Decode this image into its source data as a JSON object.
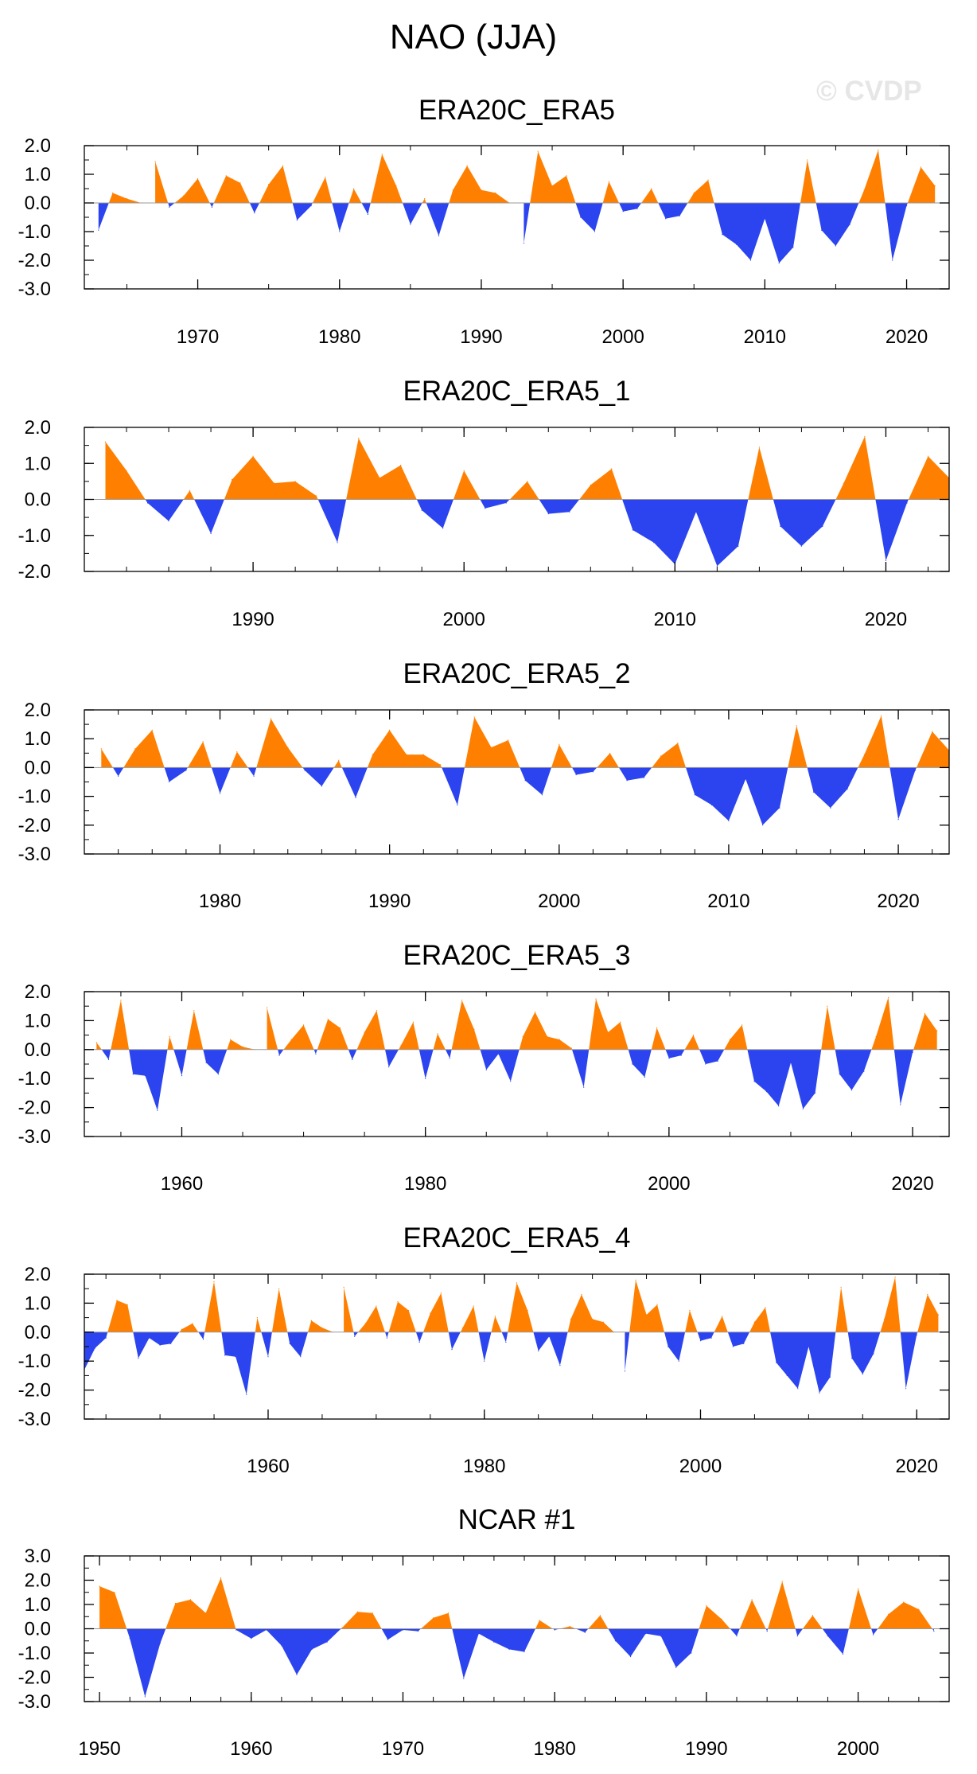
{
  "figure": {
    "title": "NAO (JJA)",
    "watermark": "© CVDP"
  },
  "colors": {
    "positive": "#ff8000",
    "negative": "#2b44ef",
    "axis": "#000000",
    "zero_line": "#999999"
  },
  "chart_data": [
    {
      "type": "area",
      "title": "ERA20C_ERA5",
      "xlim": [
        1962,
        2023
      ],
      "ylim": [
        -3,
        2
      ],
      "y_ticks": [
        2,
        1,
        0,
        -1,
        -2,
        -3
      ],
      "y_tick_labels": [
        "2.0",
        "1.0",
        "0.0",
        "-1.0",
        "-2.0",
        "-3.0"
      ],
      "x_ticks": [
        1970,
        1980,
        1990,
        2000,
        2010,
        2020
      ],
      "x_start": 1963,
      "values": [
        -0.95,
        0.35,
        0.15,
        0.0,
        1.45,
        -0.15,
        0.25,
        0.85,
        -0.15,
        0.95,
        0.7,
        -0.35,
        0.65,
        1.3,
        -0.6,
        -0.1,
        0.9,
        -1.0,
        0.5,
        -0.4,
        1.7,
        0.6,
        -0.75,
        0.15,
        -1.15,
        0.45,
        1.3,
        0.45,
        0.35,
        0.0,
        -1.4,
        1.8,
        0.6,
        0.95,
        -0.5,
        -1.0,
        0.75,
        -0.3,
        -0.2,
        0.5,
        -0.55,
        -0.45,
        0.35,
        0.8,
        -1.1,
        -1.45,
        -2.0,
        -0.55,
        -2.1,
        -1.55,
        1.5,
        -0.95,
        -1.5,
        -0.75,
        0.45,
        1.85,
        -2.0,
        -0.1,
        1.25,
        0.6
      ]
    },
    {
      "type": "area",
      "title": "ERA20C_ERA5_1",
      "xlim": [
        1982,
        2023
      ],
      "ylim": [
        -2,
        2
      ],
      "y_ticks": [
        2,
        1,
        0,
        -1,
        -2
      ],
      "y_tick_labels": [
        "2.0",
        "1.0",
        "0.0",
        "-1.0",
        "-2.0"
      ],
      "x_ticks": [
        1990,
        2000,
        2010,
        2020
      ],
      "x_start": 1983,
      "values": [
        1.6,
        0.8,
        -0.1,
        -0.6,
        0.25,
        -0.95,
        0.55,
        1.2,
        0.45,
        0.5,
        0.1,
        -1.2,
        1.7,
        0.6,
        0.95,
        -0.3,
        -0.8,
        0.8,
        -0.25,
        -0.1,
        0.5,
        -0.4,
        -0.35,
        0.4,
        0.85,
        -0.85,
        -1.2,
        -1.8,
        -0.35,
        -1.85,
        -1.3,
        1.45,
        -0.75,
        -1.3,
        -0.75,
        0.45,
        1.75,
        -1.7,
        -0.1,
        1.2,
        0.6
      ]
    },
    {
      "type": "area",
      "title": "ERA20C_ERA5_2",
      "xlim": [
        1972,
        2023
      ],
      "ylim": [
        -3,
        2
      ],
      "y_ticks": [
        2,
        1,
        0,
        -1,
        -2,
        -3
      ],
      "y_tick_labels": [
        "2.0",
        "1.0",
        "0.0",
        "-1.0",
        "-2.0",
        "-3.0"
      ],
      "x_ticks": [
        1980,
        1990,
        2000,
        2010,
        2020
      ],
      "x_start": 1973,
      "values": [
        0.65,
        -0.3,
        0.65,
        1.3,
        -0.5,
        -0.1,
        0.9,
        -0.9,
        0.55,
        -0.3,
        1.7,
        0.7,
        -0.1,
        -0.65,
        0.25,
        -1.05,
        0.45,
        1.3,
        0.45,
        0.45,
        0.1,
        -1.3,
        1.75,
        0.7,
        0.95,
        -0.45,
        -0.95,
        0.8,
        -0.25,
        -0.15,
        0.5,
        -0.45,
        -0.35,
        0.4,
        0.85,
        -0.95,
        -1.3,
        -1.85,
        -0.4,
        -2.0,
        -1.4,
        1.45,
        -0.85,
        -1.4,
        -0.75,
        0.45,
        1.8,
        -1.8,
        -0.1,
        1.25,
        0.6
      ]
    },
    {
      "type": "area",
      "title": "ERA20C_ERA5_3",
      "xlim": [
        1952,
        2023
      ],
      "ylim": [
        -3,
        2
      ],
      "y_ticks": [
        2,
        1,
        0,
        -1,
        -2,
        -3
      ],
      "y_tick_labels": [
        "2.0",
        "1.0",
        "0.0",
        "-1.0",
        "-2.0",
        "-3.0"
      ],
      "x_ticks": [
        1960,
        1980,
        2000,
        2020
      ],
      "x_start": 1953,
      "values": [
        0.25,
        -0.35,
        1.7,
        -0.85,
        -0.9,
        -2.1,
        0.45,
        -0.9,
        1.35,
        -0.45,
        -0.85,
        0.35,
        0.1,
        0.0,
        1.45,
        -0.2,
        0.35,
        0.85,
        -0.15,
        1.05,
        0.75,
        -0.35,
        0.6,
        1.35,
        -0.6,
        0.15,
        0.95,
        -1.0,
        0.55,
        -0.3,
        1.7,
        0.7,
        -0.7,
        -0.15,
        -1.1,
        0.45,
        1.3,
        0.45,
        0.35,
        0.05,
        -1.3,
        1.75,
        0.6,
        0.95,
        -0.5,
        -0.95,
        0.75,
        -0.3,
        -0.2,
        0.5,
        -0.5,
        -0.4,
        0.35,
        0.85,
        -1.1,
        -1.45,
        -1.95,
        -0.45,
        -2.05,
        -1.5,
        1.5,
        -0.85,
        -1.4,
        -0.75,
        0.45,
        1.8,
        -1.9,
        -0.1,
        1.25,
        0.65
      ]
    },
    {
      "type": "area",
      "title": "ERA20C_ERA5_4",
      "xlim": [
        1943,
        2023
      ],
      "ylim": [
        -3,
        2
      ],
      "y_ticks": [
        2,
        1,
        0,
        -1,
        -2,
        -3
      ],
      "y_tick_labels": [
        "2.0",
        "1.0",
        "0.0",
        "-1.0",
        "-2.0",
        "-3.0"
      ],
      "x_ticks": [
        1960,
        1980,
        2000,
        2020
      ],
      "x_start": 1943,
      "values": [
        -1.3,
        -0.55,
        -0.2,
        1.1,
        0.95,
        -0.9,
        -0.2,
        -0.45,
        -0.4,
        0.1,
        0.3,
        -0.25,
        1.75,
        -0.8,
        -0.85,
        -2.15,
        0.5,
        -0.85,
        1.5,
        -0.4,
        -0.85,
        0.4,
        0.15,
        0.0,
        1.55,
        -0.15,
        0.3,
        0.9,
        -0.2,
        1.05,
        0.75,
        -0.35,
        0.65,
        1.35,
        -0.6,
        0.15,
        0.9,
        -1.0,
        0.55,
        -0.35,
        1.7,
        0.75,
        -0.65,
        -0.15,
        -1.15,
        0.45,
        1.3,
        0.45,
        0.35,
        0.0,
        -1.35,
        1.8,
        0.6,
        0.95,
        -0.5,
        -1.0,
        0.75,
        -0.3,
        -0.2,
        0.55,
        -0.5,
        -0.4,
        0.35,
        0.85,
        -1.05,
        -1.5,
        -1.95,
        -0.5,
        -2.1,
        -1.55,
        1.55,
        -0.9,
        -1.45,
        -0.75,
        0.45,
        1.9,
        -1.95,
        -0.1,
        1.3,
        0.6
      ]
    },
    {
      "type": "area",
      "title": "NCAR #1",
      "xlim": [
        1949,
        2006
      ],
      "ylim": [
        -3,
        3
      ],
      "y_ticks": [
        3,
        2,
        1,
        0,
        -1,
        -2,
        -3
      ],
      "y_tick_labels": [
        "3.0",
        "2.0",
        "1.0",
        "0.0",
        "-1.0",
        "-2.0",
        "-3.0"
      ],
      "x_ticks": [
        1950,
        1960,
        1970,
        1980,
        1990,
        2000
      ],
      "x_start": 1950,
      "values": [
        1.75,
        1.5,
        -0.4,
        -2.8,
        -0.6,
        1.05,
        1.2,
        0.65,
        2.1,
        -0.05,
        -0.4,
        -0.05,
        -0.7,
        -1.9,
        -0.85,
        -0.55,
        0.05,
        0.7,
        0.65,
        -0.45,
        -0.05,
        -0.1,
        0.45,
        0.65,
        -2.05,
        -0.2,
        -0.55,
        -0.85,
        -0.95,
        0.35,
        -0.05,
        0.1,
        -0.15,
        0.55,
        -0.5,
        -1.15,
        -0.2,
        -0.3,
        -1.6,
        -1.0,
        0.95,
        0.4,
        -0.3,
        1.2,
        -0.1,
        1.95,
        -0.3,
        0.55,
        -0.3,
        -1.05,
        1.65,
        -0.25,
        0.6,
        1.1,
        0.8,
        -0.1
      ]
    }
  ]
}
